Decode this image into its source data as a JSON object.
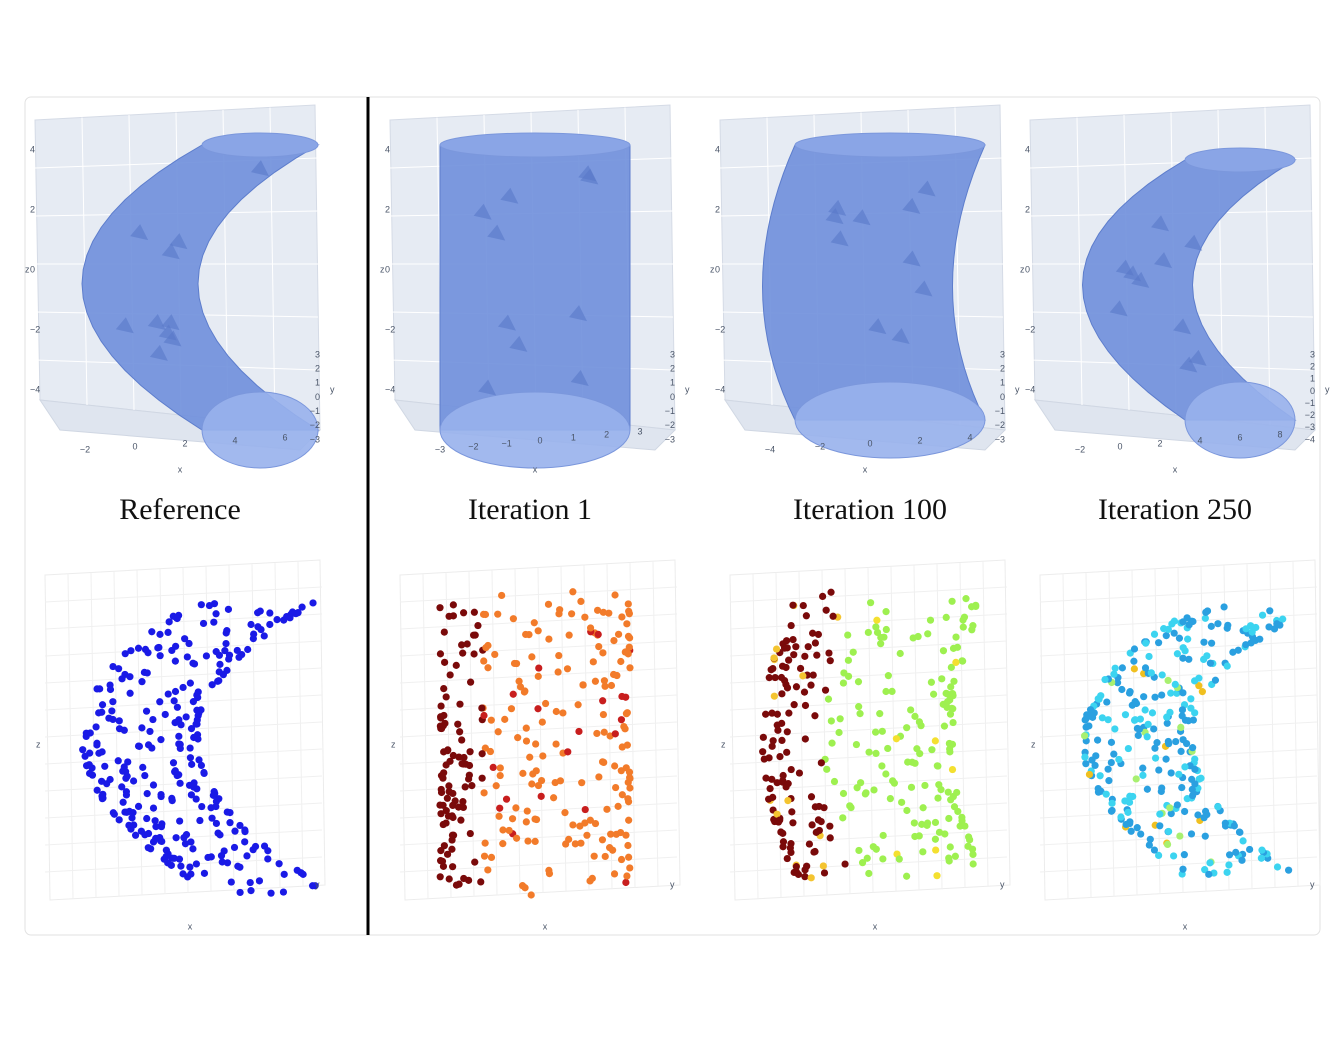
{
  "panels": [
    {
      "caption": "Reference",
      "mesh_axes": {
        "z_title": "z",
        "z_ticks": [
          "4",
          "2",
          "0",
          "−2",
          "−4"
        ],
        "x_title": "x",
        "x_ticks": [
          "−2",
          "0",
          "2",
          "4",
          "6"
        ],
        "y_title": "y",
        "y_ticks": [
          "3",
          "2",
          "1",
          "0",
          "−1",
          "−2",
          "−3"
        ]
      },
      "scatter_axes": {
        "z_title": "z",
        "x_title": "x",
        "y_title": "y"
      }
    },
    {
      "caption": "Iteration 1",
      "mesh_axes": {
        "z_title": "z",
        "z_ticks": [
          "4",
          "2",
          "0",
          "−2",
          "−4"
        ],
        "x_title": "x",
        "x_ticks": [
          "−3",
          "−2",
          "−1",
          "0",
          "1",
          "2",
          "3"
        ],
        "y_title": "y",
        "y_ticks": [
          "3",
          "2",
          "1",
          "0",
          "−1",
          "−2",
          "−3"
        ]
      },
      "scatter_axes": {
        "z_title": "z",
        "x_title": "x",
        "y_title": "y"
      }
    },
    {
      "caption": "Iteration 100",
      "mesh_axes": {
        "z_title": "z",
        "z_ticks": [
          "4",
          "2",
          "0",
          "−2",
          "−4"
        ],
        "x_title": "x",
        "x_ticks": [
          "−4",
          "−2",
          "0",
          "2",
          "4"
        ],
        "y_title": "y",
        "y_ticks": [
          "3",
          "2",
          "1",
          "0",
          "−1",
          "−2",
          "−3"
        ]
      },
      "scatter_axes": {
        "z_title": "z",
        "x_title": "x",
        "y_title": "y"
      }
    },
    {
      "caption": "Iteration 250",
      "mesh_axes": {
        "z_title": "z",
        "z_ticks": [
          "4",
          "2",
          "0",
          "−2",
          "−4"
        ],
        "x_title": "x",
        "x_ticks": [
          "−2",
          "0",
          "2",
          "4",
          "6",
          "8"
        ],
        "y_title": "y",
        "y_ticks": [
          "3",
          "2",
          "1",
          "0",
          "−1",
          "−2",
          "−3",
          "−4"
        ]
      },
      "scatter_axes": {
        "z_title": "z",
        "x_title": "x",
        "y_title": "y"
      }
    }
  ]
}
